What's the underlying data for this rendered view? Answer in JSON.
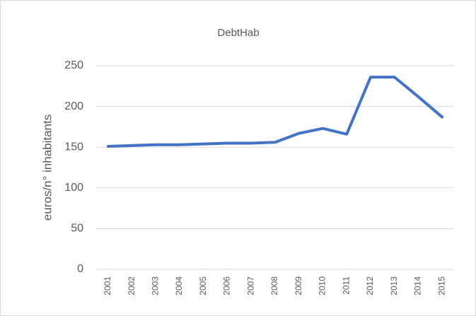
{
  "chart_data": {
    "type": "line",
    "title": "DebtHab",
    "ylabel": "euros/n° inhabitants",
    "categories": [
      "2001",
      "2002",
      "2003",
      "2004",
      "2005",
      "2006",
      "2007",
      "2008",
      "2009",
      "2010",
      "2011",
      "2012",
      "2013",
      "2014",
      "2015"
    ],
    "series": [
      {
        "name": "DebtHab",
        "color": "#4472c4",
        "values": [
          151,
          152,
          153,
          153,
          154,
          155,
          155,
          156,
          167,
          173,
          166,
          236,
          236,
          212,
          187
        ]
      }
    ],
    "ylim": [
      0,
      250
    ],
    "yticks": [
      0,
      50,
      100,
      150,
      200,
      250
    ],
    "grid": true
  }
}
